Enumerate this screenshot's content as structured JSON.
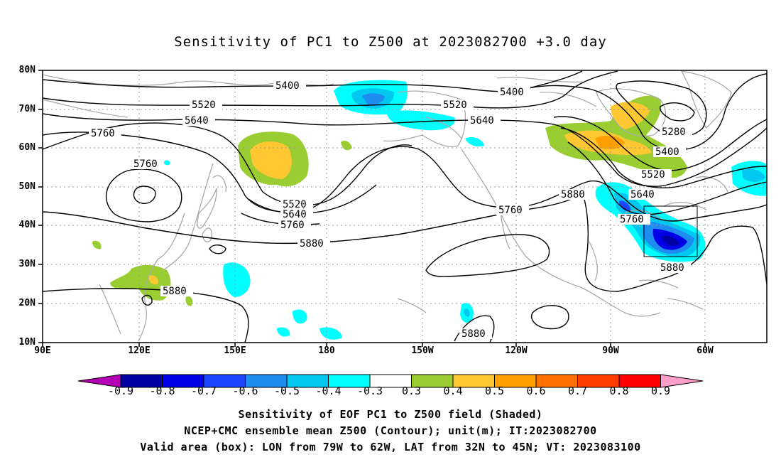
{
  "title": "Sensitivity of PC1 to Z500 at 2023082700 +3.0 day",
  "lat_labels": [
    "80N",
    "70N",
    "60N",
    "50N",
    "40N",
    "30N",
    "20N",
    "10N"
  ],
  "lon_labels": [
    "90E",
    "120E",
    "150E",
    "180",
    "150W",
    "120W",
    "90W",
    "60W"
  ],
  "contour_labels": [
    "5400",
    "5520",
    "5640",
    "5760",
    "5760",
    "5520",
    "5640",
    "5760",
    "5880",
    "5880",
    "5400",
    "5520",
    "5640",
    "5760",
    "5280",
    "5400",
    "5520",
    "5640",
    "5760",
    "5880",
    "5880",
    "5880"
  ],
  "colorbar": {
    "labels": [
      "-0.9",
      "-0.8",
      "-0.7",
      "-0.6",
      "-0.5",
      "-0.4",
      "-0.3",
      "0.3",
      "0.4",
      "0.5",
      "0.6",
      "0.7",
      "0.8",
      "0.9"
    ],
    "colors": [
      "#b400b4",
      "#0000a0",
      "#0000e6",
      "#1e46ff",
      "#1e8cf0",
      "#00c8f0",
      "#00ffff",
      "#ffffff",
      "#9acd32",
      "#ffc832",
      "#ffa000",
      "#ff6e00",
      "#ff3c00",
      "#ff0000",
      "#ff9ec8"
    ]
  },
  "captions": {
    "line1": "Sensitivity of EOF PC1 to Z500 field (Shaded)",
    "line2": "NCEP+CMC ensemble mean Z500 (Contour); unit(m); IT:2023082700",
    "line3": "Valid area (box): LON from 79W to 62W, LAT from 32N to 45N; VT: 2023083100"
  },
  "valid_box": {
    "lon_from": "79W",
    "lon_to": "62W",
    "lat_from": "32N",
    "lat_to": "45N"
  }
}
